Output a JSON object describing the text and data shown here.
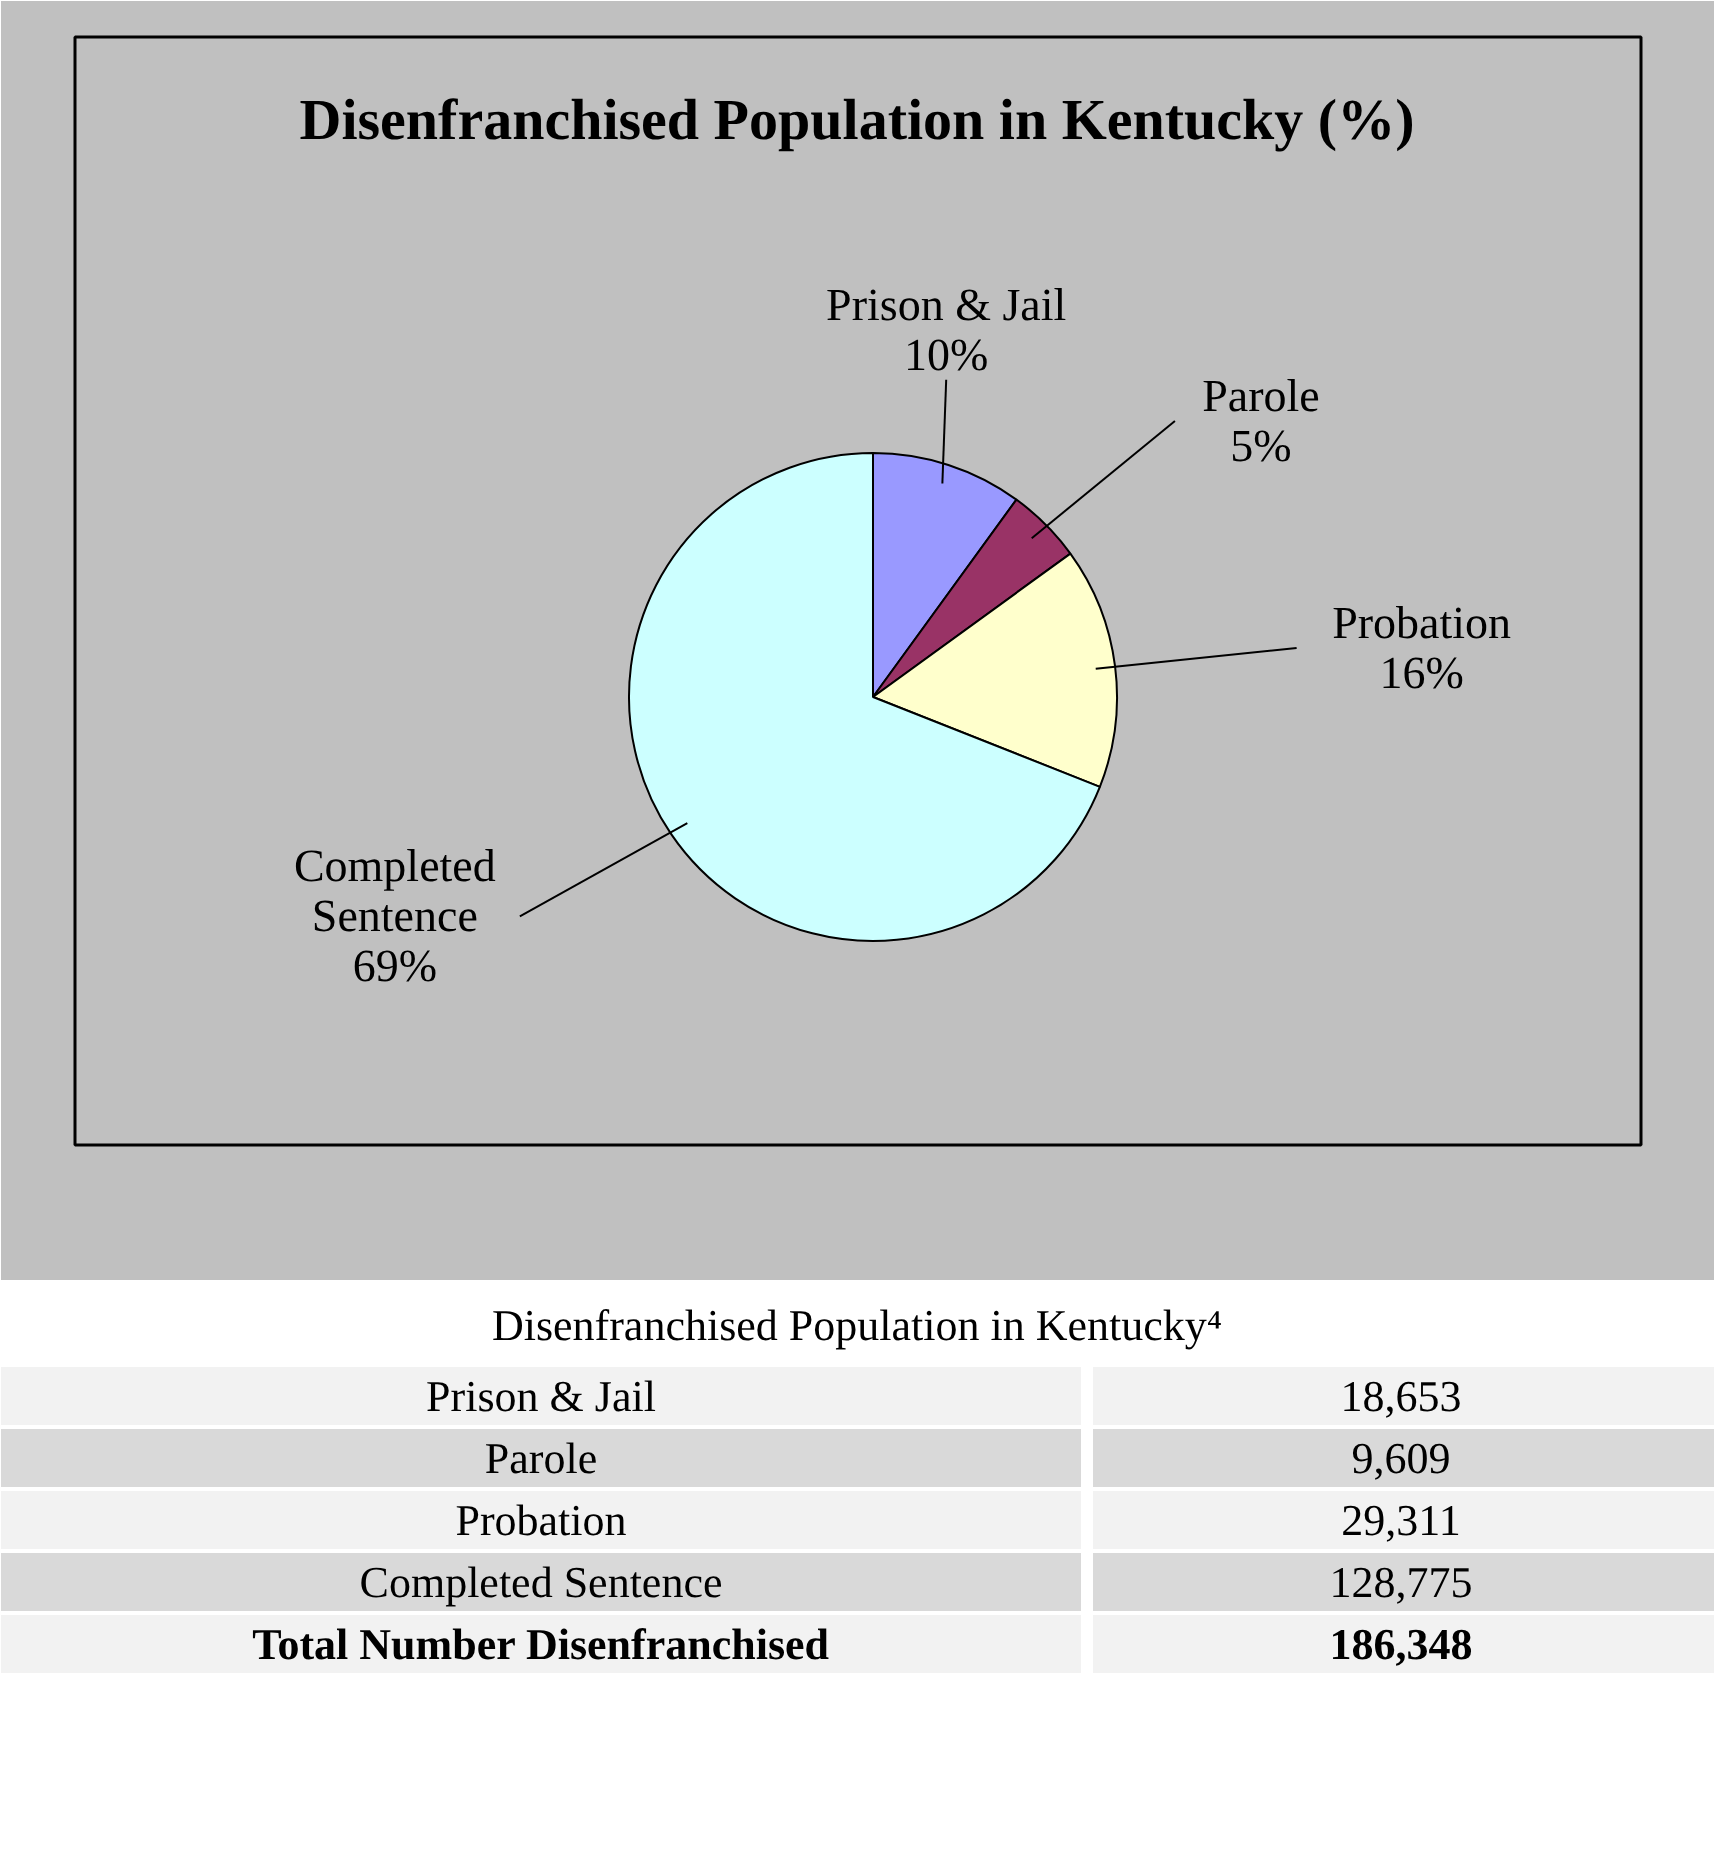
{
  "chart_data": [
    {
      "type": "pie",
      "title": "Disenfranchised Population in Kentucky (%)",
      "categories": [
        "Prison & Jail",
        "Parole",
        "Probation",
        "Completed Sentence"
      ],
      "values": [
        10,
        5,
        16,
        69
      ],
      "value_labels": [
        "10%",
        "5%",
        "16%",
        "69%"
      ],
      "colors": [
        "#9999ff",
        "#993366",
        "#ffffcc",
        "#ccffff"
      ]
    },
    {
      "type": "other",
      "title": "Disenfranchised Population in Kentucky⁴",
      "annotations": [
        "Prison & Jail",
        "18,653",
        "Parole",
        "9,609",
        "Probation",
        "29,311",
        "Completed Sentence",
        "128,775",
        "Total Number Disenfranchised",
        "186,348"
      ]
    }
  ]
}
